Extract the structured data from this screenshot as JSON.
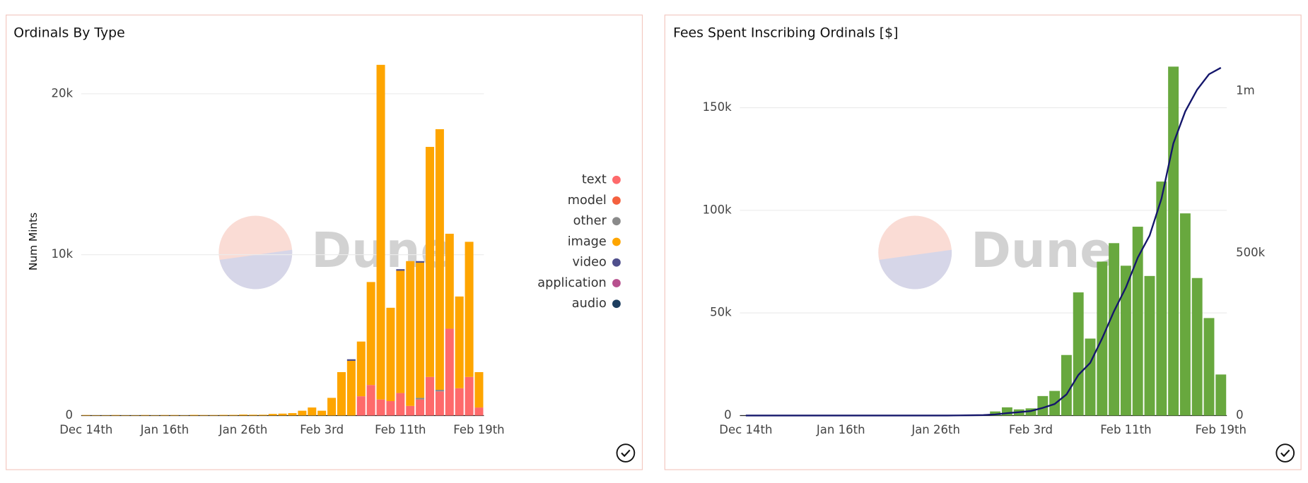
{
  "chart_data": [
    {
      "type": "bar",
      "title": "Ordinals By Type",
      "ylabel": "Num Mints",
      "watermark": "Dune",
      "stacked": true,
      "legend": "right",
      "categories": [
        "Dec 14th",
        null,
        null,
        null,
        null,
        null,
        null,
        null,
        "Jan 16th",
        null,
        null,
        null,
        null,
        null,
        null,
        null,
        "Jan 26th",
        null,
        null,
        null,
        null,
        null,
        null,
        null,
        "Feb 3rd",
        null,
        null,
        null,
        null,
        null,
        null,
        null,
        "Feb 11th",
        null,
        null,
        null,
        null,
        null,
        null,
        null,
        "Feb 19th"
      ],
      "series": [
        {
          "name": "text",
          "color": "#fe6a6b",
          "values": [
            0,
            0,
            0,
            0,
            0,
            0,
            0,
            0,
            0,
            0,
            0,
            0,
            0,
            0,
            0,
            0,
            0,
            0,
            0,
            0,
            0,
            0,
            0,
            0,
            0,
            0,
            0,
            0,
            1200,
            1900,
            1000,
            900,
            1400,
            600,
            1000,
            2400,
            1500,
            5400,
            1700,
            2400,
            500
          ]
        },
        {
          "name": "model",
          "color": "#f4603e",
          "values": [
            0,
            0,
            0,
            0,
            0,
            0,
            0,
            0,
            0,
            0,
            0,
            0,
            0,
            0,
            0,
            0,
            0,
            0,
            0,
            0,
            0,
            0,
            0,
            0,
            0,
            0,
            0,
            0,
            0,
            0,
            0,
            0,
            0,
            0,
            0,
            0,
            0,
            0,
            0,
            0,
            0
          ]
        },
        {
          "name": "other",
          "color": "#8a8a8a",
          "values": [
            0,
            0,
            0,
            0,
            0,
            0,
            0,
            0,
            0,
            0,
            0,
            0,
            0,
            0,
            0,
            0,
            0,
            0,
            0,
            0,
            0,
            0,
            0,
            0,
            0,
            0,
            0,
            0,
            0,
            0,
            0,
            0,
            0,
            0,
            100,
            0,
            100,
            0,
            0,
            0,
            0
          ]
        },
        {
          "name": "image",
          "color": "#fea500",
          "values": [
            30,
            20,
            20,
            30,
            20,
            20,
            30,
            20,
            30,
            30,
            20,
            40,
            30,
            30,
            40,
            40,
            60,
            50,
            50,
            100,
            120,
            150,
            300,
            500,
            300,
            1100,
            2700,
            3400,
            3400,
            6400,
            20800,
            5800,
            7600,
            9000,
            8400,
            14300,
            16200,
            5900,
            5700,
            8400,
            2200
          ]
        },
        {
          "name": "video",
          "color": "#4f4f8c",
          "values": [
            0,
            0,
            0,
            0,
            0,
            0,
            0,
            0,
            0,
            0,
            0,
            0,
            0,
            0,
            0,
            0,
            0,
            0,
            0,
            0,
            0,
            0,
            0,
            0,
            0,
            0,
            0,
            100,
            0,
            0,
            0,
            0,
            100,
            0,
            100,
            0,
            0,
            0,
            0,
            0,
            0
          ]
        },
        {
          "name": "application",
          "color": "#b7508e",
          "values": [
            0,
            0,
            0,
            0,
            0,
            0,
            0,
            0,
            0,
            0,
            0,
            0,
            0,
            0,
            0,
            0,
            0,
            0,
            0,
            0,
            0,
            0,
            0,
            0,
            0,
            0,
            0,
            0,
            0,
            0,
            0,
            0,
            0,
            0,
            0,
            0,
            0,
            0,
            0,
            0,
            0
          ]
        },
        {
          "name": "audio",
          "color": "#1d3e5f",
          "values": [
            0,
            0,
            0,
            0,
            0,
            0,
            0,
            0,
            0,
            0,
            0,
            0,
            0,
            0,
            0,
            0,
            0,
            0,
            0,
            0,
            0,
            0,
            0,
            0,
            0,
            0,
            0,
            0,
            0,
            0,
            0,
            0,
            0,
            0,
            0,
            0,
            0,
            0,
            0,
            0,
            0
          ]
        }
      ],
      "ylim": [
        0,
        22000
      ],
      "yticks": [
        0,
        {
          "value": 10000,
          "label": "10k"
        },
        {
          "value": 20000,
          "label": "20k"
        }
      ],
      "grid": true
    },
    {
      "type": "bar",
      "title": "Fees Spent Inscribing Ordinals [$]",
      "watermark": "Dune",
      "categories": [
        "Dec 14th",
        null,
        null,
        null,
        null,
        null,
        null,
        null,
        "Jan 16th",
        null,
        null,
        null,
        null,
        null,
        null,
        null,
        "Jan 26th",
        null,
        null,
        null,
        null,
        null,
        null,
        null,
        "Feb 3rd",
        null,
        null,
        null,
        null,
        null,
        null,
        null,
        "Feb 11th",
        null,
        null,
        null,
        null,
        null,
        null,
        null,
        "Feb 19th"
      ],
      "series": [
        {
          "color": "#68a83e",
          "values": [
            0,
            0,
            0,
            0,
            0,
            0,
            0,
            0,
            0,
            0,
            0,
            0,
            0,
            0,
            0,
            0,
            0,
            0,
            0,
            0,
            0,
            2000,
            4000,
            3000,
            3500,
            9500,
            12000,
            29500,
            60000,
            37500,
            75000,
            84000,
            73000,
            92000,
            68000,
            114000,
            170000,
            98500,
            67000,
            47500,
            20000
          ]
        },
        {
          "color": "#14166b",
          "type": "line",
          "axis": "y2",
          "values": [
            0,
            0,
            0,
            0,
            0,
            0,
            0,
            0,
            0,
            0,
            0,
            0,
            0,
            0,
            0,
            0,
            0,
            0,
            500,
            1000,
            1500,
            3500,
            7500,
            10500,
            14000,
            23500,
            35500,
            65000,
            125000,
            162500,
            237500,
            321500,
            394500,
            486500,
            554500,
            668500,
            838500,
            937000,
            1004000,
            1051500,
            1071500
          ]
        }
      ],
      "ylim": [
        0,
        170000
      ],
      "yticks": [
        0,
        {
          "value": 50000,
          "label": "50k"
        },
        {
          "value": 100000,
          "label": "100k"
        },
        {
          "value": 150000,
          "label": "150k"
        }
      ],
      "y2lim": [
        0,
        1075000
      ],
      "y2ticks": [
        0,
        {
          "value": 500000,
          "label": "500k"
        },
        {
          "value": 1000000,
          "label": "1m"
        }
      ],
      "grid": true
    }
  ]
}
